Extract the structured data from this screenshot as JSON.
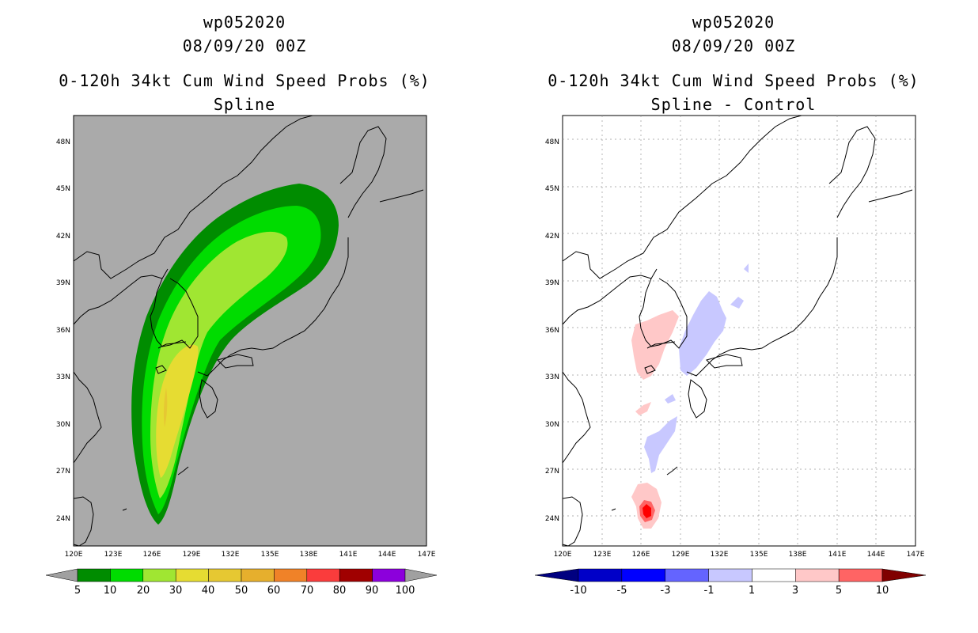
{
  "left_panel": {
    "title_line1": "wp052020",
    "title_line2": "08/09/20 00Z",
    "title_line3": "0-120h 34kt Cum Wind Speed Probs (%)",
    "title_line4": "Spline",
    "colorbar_labels": [
      "5",
      "10",
      "20",
      "30",
      "40",
      "50",
      "60",
      "70",
      "80",
      "90",
      "100"
    ],
    "colorbar_colors": [
      "#008c00",
      "#00dc00",
      "#a0e632",
      "#e6dc32",
      "#e6c832",
      "#e6af2d",
      "#f08228",
      "#fa3c3c",
      "#a00000",
      "#8c00dc"
    ]
  },
  "right_panel": {
    "title_line1": "wp052020",
    "title_line2": "08/09/20 00Z",
    "title_line3": "0-120h 34kt Cum Wind Speed Probs (%)",
    "title_line4": "Spline - Control",
    "colorbar_labels": [
      "-10",
      "-5",
      "-3",
      "-1",
      "1",
      "3",
      "5",
      "10"
    ],
    "colorbar_colors": [
      "#0000c8",
      "#0000ff",
      "#6464ff",
      "#c8c8ff",
      "#ffffff",
      "#ffc8c8",
      "#ff6464",
      "#ff0000"
    ],
    "colorbar_end_colors": [
      "#000080",
      "#800000"
    ]
  },
  "map": {
    "lon_labels": [
      "120E",
      "123E",
      "126E",
      "129E",
      "132E",
      "135E",
      "138E",
      "141E",
      "144E",
      "147E"
    ],
    "lat_labels": [
      "24N",
      "27N",
      "30N",
      "33N",
      "36N",
      "39N",
      "42N",
      "45N",
      "48N"
    ]
  }
}
